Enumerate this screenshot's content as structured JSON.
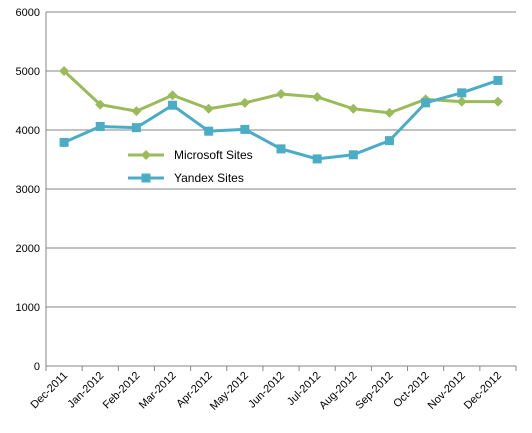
{
  "chart_data": {
    "type": "line",
    "title": "",
    "xlabel": "",
    "ylabel": "",
    "categories": [
      "Dec-2011",
      "Jan-2012",
      "Feb-2012",
      "Mar-2012",
      "Apr-2012",
      "May-2012",
      "Jun-2012",
      "Jul-2012",
      "Aug-2012",
      "Sep-2012",
      "Oct-2012",
      "Nov-2012",
      "Dec-2012"
    ],
    "ylim": [
      0,
      6000
    ],
    "yticks": [
      "0",
      "1000",
      "2000",
      "3000",
      "4000",
      "5000",
      "6000"
    ],
    "grid": true,
    "legend_position": "center-left",
    "series": [
      {
        "name": "Microsoft Sites",
        "color": "#9bbb59",
        "marker": "diamond",
        "values": [
          5000,
          4430,
          4320,
          4590,
          4360,
          4460,
          4610,
          4560,
          4360,
          4290,
          4520,
          4480,
          4480
        ]
      },
      {
        "name": "Yandex Sites",
        "color": "#4bacc6",
        "marker": "square",
        "values": [
          3790,
          4060,
          4040,
          4420,
          3980,
          4010,
          3680,
          3510,
          3580,
          3820,
          4460,
          4630,
          4840
        ]
      }
    ]
  }
}
